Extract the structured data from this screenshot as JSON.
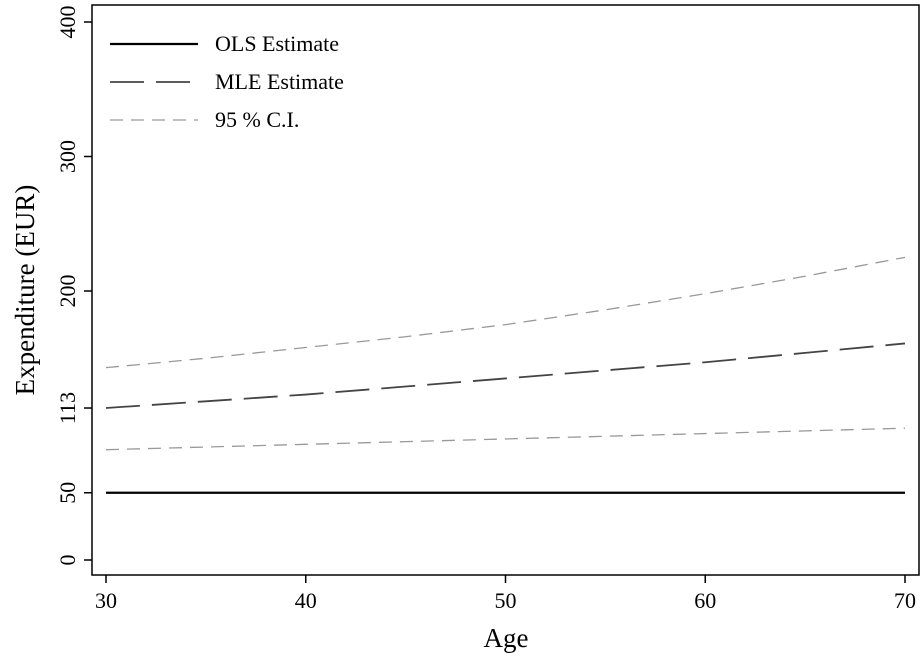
{
  "chart_data": {
    "type": "line",
    "title": "",
    "xlabel": "Age",
    "ylabel": "Expenditure (EUR)",
    "xlim": [
      30,
      70
    ],
    "ylim": [
      0,
      400
    ],
    "xticks": [
      30,
      40,
      50,
      60,
      70
    ],
    "yticks": [
      0,
      50,
      113,
      200,
      300,
      400
    ],
    "grid": false,
    "legend": {
      "position": "top-left"
    },
    "x": [
      30,
      35,
      40,
      45,
      50,
      55,
      60,
      65,
      70
    ],
    "series": [
      {
        "name": "OLS Estimate",
        "style": "solid",
        "color": "#000000",
        "values": [
          50,
          50,
          50,
          50,
          50,
          50,
          50,
          50,
          50
        ]
      },
      {
        "name": "MLE Estimate",
        "style": "long-dash",
        "color": "#444444",
        "values": [
          113,
          118,
          123,
          129,
          135,
          141,
          147,
          154,
          161
        ]
      },
      {
        "name": "95 % C.I.",
        "style": "short-dash",
        "color": "#999999",
        "values": [
          143,
          150,
          158,
          166,
          175,
          186,
          198,
          211,
          225
        ]
      },
      {
        "name": "",
        "style": "short-dash",
        "color": "#999999",
        "values": [
          82,
          84,
          86,
          88,
          90,
          92,
          94,
          96,
          98
        ]
      }
    ]
  }
}
